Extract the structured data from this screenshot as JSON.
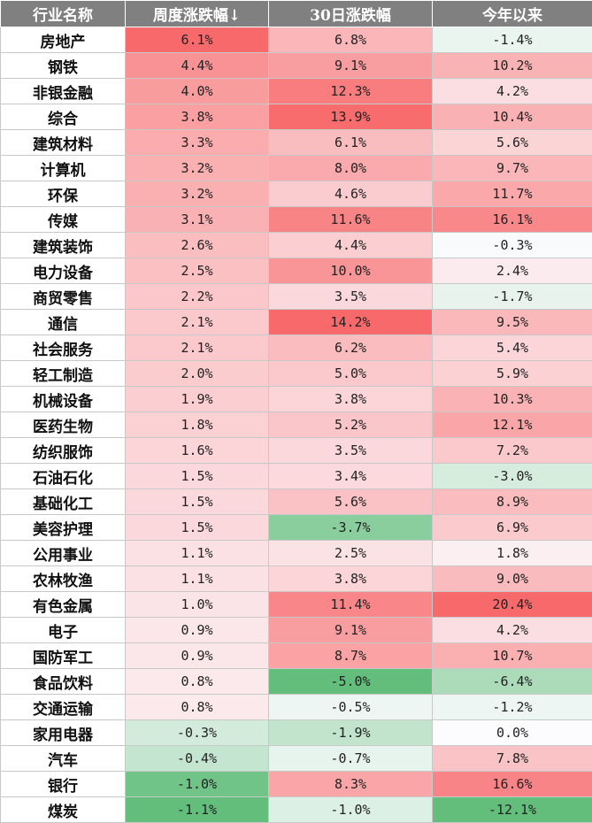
{
  "chart_data": {
    "type": "table",
    "columns": [
      "行业名称",
      "周度涨跌幅↓",
      "30日涨跌幅",
      "今年以来"
    ],
    "rows": [
      {
        "name": "房地产",
        "week": "6.1%",
        "d30": "6.8%",
        "ytd": "-1.4%"
      },
      {
        "name": "钢铁",
        "week": "4.4%",
        "d30": "9.1%",
        "ytd": "10.2%"
      },
      {
        "name": "非银金融",
        "week": "4.0%",
        "d30": "12.3%",
        "ytd": "4.2%"
      },
      {
        "name": "综合",
        "week": "3.8%",
        "d30": "13.9%",
        "ytd": "10.4%"
      },
      {
        "name": "建筑材料",
        "week": "3.3%",
        "d30": "6.1%",
        "ytd": "5.6%"
      },
      {
        "name": "计算机",
        "week": "3.2%",
        "d30": "8.0%",
        "ytd": "9.7%"
      },
      {
        "name": "环保",
        "week": "3.2%",
        "d30": "4.6%",
        "ytd": "11.7%"
      },
      {
        "name": "传媒",
        "week": "3.1%",
        "d30": "11.6%",
        "ytd": "16.1%"
      },
      {
        "name": "建筑装饰",
        "week": "2.6%",
        "d30": "4.4%",
        "ytd": "-0.3%"
      },
      {
        "name": "电力设备",
        "week": "2.5%",
        "d30": "10.0%",
        "ytd": "2.4%"
      },
      {
        "name": "商贸零售",
        "week": "2.2%",
        "d30": "3.5%",
        "ytd": "-1.7%"
      },
      {
        "name": "通信",
        "week": "2.1%",
        "d30": "14.2%",
        "ytd": "9.5%"
      },
      {
        "name": "社会服务",
        "week": "2.1%",
        "d30": "6.2%",
        "ytd": "5.4%"
      },
      {
        "name": "轻工制造",
        "week": "2.0%",
        "d30": "5.0%",
        "ytd": "5.9%"
      },
      {
        "name": "机械设备",
        "week": "1.9%",
        "d30": "3.8%",
        "ytd": "10.3%"
      },
      {
        "name": "医药生物",
        "week": "1.8%",
        "d30": "5.2%",
        "ytd": "12.1%"
      },
      {
        "name": "纺织服饰",
        "week": "1.6%",
        "d30": "3.5%",
        "ytd": "7.2%"
      },
      {
        "name": "石油石化",
        "week": "1.5%",
        "d30": "3.4%",
        "ytd": "-3.0%"
      },
      {
        "name": "基础化工",
        "week": "1.5%",
        "d30": "5.6%",
        "ytd": "8.9%"
      },
      {
        "name": "美容护理",
        "week": "1.5%",
        "d30": "-3.7%",
        "ytd": "6.9%"
      },
      {
        "name": "公用事业",
        "week": "1.1%",
        "d30": "2.5%",
        "ytd": "1.8%"
      },
      {
        "name": "农林牧渔",
        "week": "1.1%",
        "d30": "3.8%",
        "ytd": "9.0%"
      },
      {
        "name": "有色金属",
        "week": "1.0%",
        "d30": "11.4%",
        "ytd": "20.4%"
      },
      {
        "name": "电子",
        "week": "0.9%",
        "d30": "9.1%",
        "ytd": "4.2%"
      },
      {
        "name": "国防军工",
        "week": "0.9%",
        "d30": "8.7%",
        "ytd": "10.7%"
      },
      {
        "name": "食品饮料",
        "week": "0.8%",
        "d30": "-5.0%",
        "ytd": "-6.4%"
      },
      {
        "name": "交通运输",
        "week": "0.8%",
        "d30": "-0.5%",
        "ytd": "-1.2%"
      },
      {
        "name": "家用电器",
        "week": "-0.3%",
        "d30": "-1.9%",
        "ytd": "0.0%"
      },
      {
        "name": "汽车",
        "week": "-0.4%",
        "d30": "-0.7%",
        "ytd": "7.8%"
      },
      {
        "name": "银行",
        "week": "-1.0%",
        "d30": "8.3%",
        "ytd": "16.6%"
      },
      {
        "name": "煤炭",
        "week": "-1.1%",
        "d30": "-1.0%",
        "ytd": "-12.1%"
      }
    ]
  },
  "colors": {
    "header_bg": "#808080",
    "header_text": "#ffffff",
    "positive_max": "#f8696b",
    "negative_max": "#63be7b",
    "neutral": "#fcfcff"
  }
}
